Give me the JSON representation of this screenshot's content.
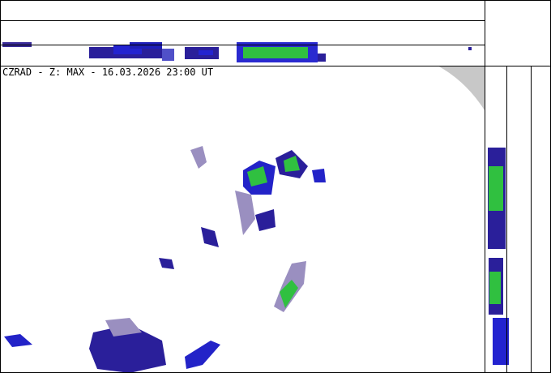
{
  "map": {
    "title": "CZRAD - Z: MAX - 16.03.2026 23:00 UT"
  }
}
